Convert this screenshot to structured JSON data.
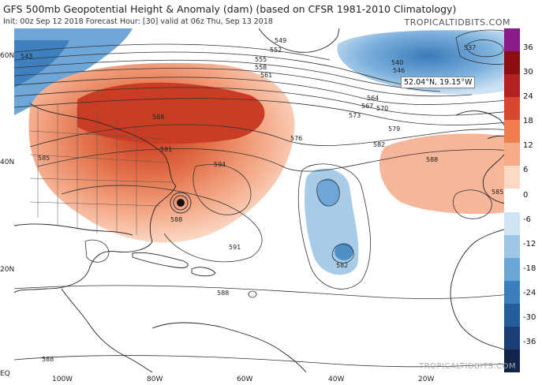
{
  "header": {
    "title": "GFS 500mb Geopotential Height & Anomaly (dam) (based on CFSR 1981-2010 Climatology)",
    "subtitle": "Init: 00z Sep 12 2018   Forecast Hour: [30]   valid at 06z Thu, Sep 13 2018",
    "brand": "TROPICALTIDBITS.COM"
  },
  "watermark": "TROPICALTIDBITS.COM",
  "cursor_readout": "52.04°N, 19.15°W",
  "lat_labels": [
    "60N",
    "40N",
    "20N",
    "EQ"
  ],
  "lon_labels": [
    "100W",
    "80W",
    "60W",
    "40W",
    "20W"
  ],
  "colorbar": {
    "ticks": [
      "36",
      "30",
      "24",
      "18",
      "12",
      "6",
      "0",
      "-6",
      "-12",
      "-18",
      "-24",
      "-30",
      "-36"
    ],
    "colors": [
      "#8a1a8a",
      "#8b0f0f",
      "#b22222",
      "#d9482e",
      "#ee7d4f",
      "#f5ac87",
      "#fbd9c4",
      "#ffffff",
      "#cfe3f3",
      "#9ec6e6",
      "#6aa6d6",
      "#3b7fbd",
      "#245d9c",
      "#1a3d73",
      "#12244a"
    ]
  },
  "contour_labels": [
    "549",
    "552",
    "555",
    "558",
    "561",
    "564",
    "567",
    "570",
    "573",
    "576",
    "579",
    "582",
    "585",
    "588",
    "591",
    "594",
    "537",
    "540",
    "543",
    "546",
    "588",
    "585",
    "582",
    "588",
    "591",
    "588",
    "588"
  ],
  "colors": {
    "warm": "#e97752",
    "cool": "#4f8fc7",
    "land": "#ffffff",
    "outline": "#222222"
  }
}
